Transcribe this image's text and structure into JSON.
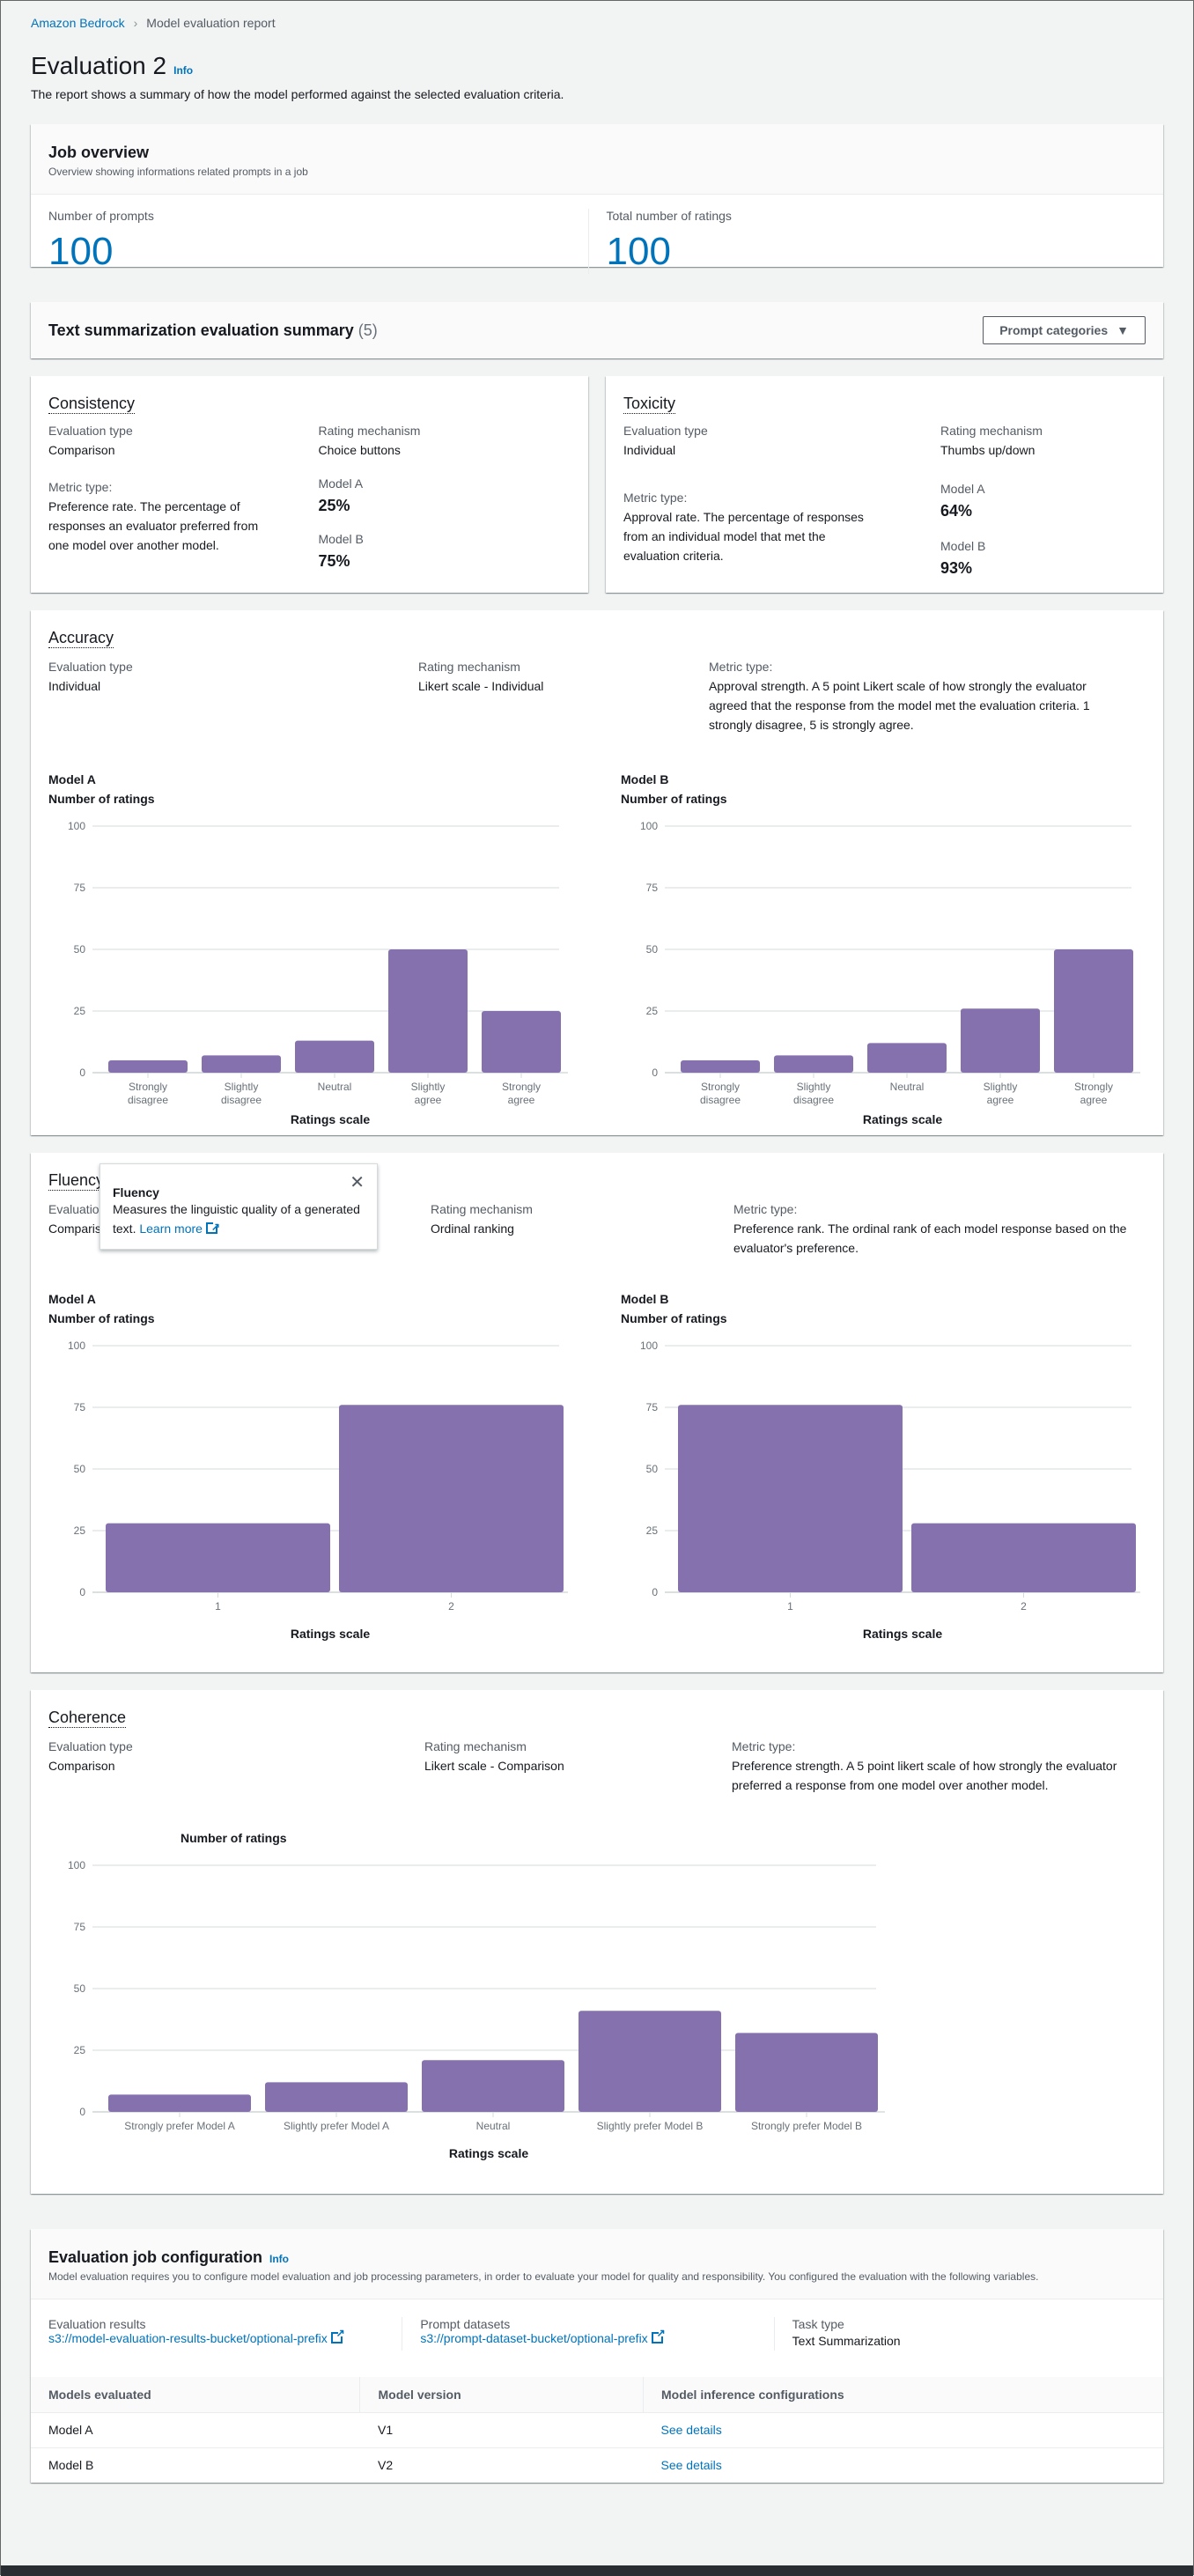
{
  "breadcrumb": {
    "root": "Amazon Bedrock",
    "current": "Model evaluation report"
  },
  "header": {
    "title": "Evaluation 2",
    "info": "Info",
    "subtitle": "The report shows a summary of how the model performed against the selected evaluation criteria."
  },
  "job_overview": {
    "title": "Job overview",
    "description": "Overview showing informations related prompts in a job",
    "prompts_label": "Number of prompts",
    "prompts_value": "100",
    "ratings_label": "Total number of ratings",
    "ratings_value": "100"
  },
  "summary": {
    "title": "Text summarization evaluation summary",
    "count": "(5)",
    "dropdown_label": "Prompt categories"
  },
  "colors": {
    "bar": "#8571ad",
    "link": "#0073bb"
  },
  "consistency": {
    "title": "Consistency",
    "eval_type_label": "Evaluation type",
    "eval_type": "Comparison",
    "rating_label": "Rating mechanism",
    "rating": "Choice buttons",
    "metric_label": "Metric type:",
    "metric": "Preference rate. The percentage of responses an evaluator preferred from one model over another model.",
    "model_a_label": "Model A",
    "model_a": "25%",
    "model_b_label": "Model B",
    "model_b": "75%"
  },
  "toxicity": {
    "title": "Toxicity",
    "eval_type_label": "Evaluation type",
    "eval_type": "Individual",
    "rating_label": "Rating mechanism",
    "rating": "Thumbs up/down",
    "metric_label": "Metric type:",
    "metric": "Approval rate. The percentage of responses from an individual model that met the evaluation criteria.",
    "model_a_label": "Model A",
    "model_a": "64%",
    "model_b_label": "Model B",
    "model_b": "93%"
  },
  "accuracy": {
    "title": "Accuracy",
    "eval_type_label": "Evaluation type",
    "eval_type": "Individual",
    "rating_label": "Rating mechanism",
    "rating": "Likert scale - Individual",
    "metric_label": "Metric type:",
    "metric": "Approval strength. A 5 point Likert scale of how strongly the evaluator agreed that the response from the model met the evaluation criteria. 1 strongly disagree, 5 is strongly agree."
  },
  "fluency": {
    "title": "Fluency",
    "eval_type_label": "Evaluation type",
    "eval_type": "Comparison",
    "rating_label": "Rating mechanism",
    "rating": "Ordinal ranking",
    "metric_label": "Metric type:",
    "metric": "Preference rank. The ordinal rank of each model response based on the evaluator's preference.",
    "popover": {
      "title": "Fluency",
      "body": "Measures the linguistic quality of a generated text.",
      "link": "Learn more"
    }
  },
  "coherence": {
    "title": "Coherence",
    "eval_type_label": "Evaluation type",
    "eval_type": "Comparison",
    "rating_label": "Rating mechanism",
    "rating": "Likert scale - Comparison",
    "metric_label": "Metric type:",
    "metric": "Preference strength. A 5 point likert scale of how strongly the evaluator preferred a response from one model over another model."
  },
  "chart_data": [
    {
      "id": "accuracy-a",
      "type": "bar",
      "title": "Model A",
      "ylabel": "Number of ratings",
      "xlabel": "Ratings scale",
      "categories": [
        "Strongly disagree",
        "Slightly disagree",
        "Neutral",
        "Slightly agree",
        "Strongly agree"
      ],
      "values": [
        5,
        7,
        13,
        50,
        25
      ],
      "ylim": [
        0,
        100
      ],
      "yticks": [
        0,
        25,
        50,
        75,
        100
      ],
      "grid": true
    },
    {
      "id": "accuracy-b",
      "type": "bar",
      "title": "Model B",
      "ylabel": "Number of ratings",
      "xlabel": "Ratings scale",
      "categories": [
        "Strongly disagree",
        "Slightly disagree",
        "Neutral",
        "Slightly agree",
        "Strongly agree"
      ],
      "values": [
        5,
        7,
        12,
        26,
        50
      ],
      "ylim": [
        0,
        100
      ],
      "yticks": [
        0,
        25,
        50,
        75,
        100
      ],
      "grid": true
    },
    {
      "id": "fluency-a",
      "type": "bar",
      "title": "Model A",
      "ylabel": "Number of ratings",
      "xlabel": "Ratings scale",
      "categories": [
        "1",
        "2"
      ],
      "values": [
        28,
        76
      ],
      "ylim": [
        0,
        100
      ],
      "yticks": [
        0,
        25,
        50,
        75,
        100
      ],
      "grid": true
    },
    {
      "id": "fluency-b",
      "type": "bar",
      "title": "Model B",
      "ylabel": "Number of ratings",
      "xlabel": "Ratings scale",
      "categories": [
        "1",
        "2"
      ],
      "values": [
        76,
        28
      ],
      "ylim": [
        0,
        100
      ],
      "yticks": [
        0,
        25,
        50,
        75,
        100
      ],
      "grid": true
    },
    {
      "id": "coherence",
      "type": "bar",
      "title": "",
      "ylabel": "Number of ratings",
      "xlabel": "Ratings scale",
      "categories": [
        "Strongly prefer Model A",
        "Slightly prefer Model A",
        "Neutral",
        "Slightly prefer Model B",
        "Strongly prefer Model B"
      ],
      "values": [
        7,
        12,
        21,
        41,
        32
      ],
      "ylim": [
        0,
        100
      ],
      "yticks": [
        0,
        25,
        50,
        75,
        100
      ],
      "grid": true
    }
  ],
  "config": {
    "title": "Evaluation job configuration",
    "info": "Info",
    "description": "Model evaluation requires you to configure model evaluation and job processing parameters, in order to evaluate your model for quality and responsibility. You configured the evaluation with the following variables.",
    "results_label": "Evaluation results",
    "results_link": "s3://model-evaluation-results-bucket/optional-prefix",
    "datasets_label": "Prompt datasets",
    "datasets_link": "s3://prompt-dataset-bucket/optional-prefix",
    "task_label": "Task type",
    "task_value": "Text Summarization",
    "table": {
      "headers": [
        "Models evaluated",
        "Model version",
        "Model inference configurations"
      ],
      "rows": [
        [
          "Model A",
          "V1",
          "See details"
        ],
        [
          "Model B",
          "V2",
          "See details"
        ]
      ]
    }
  }
}
